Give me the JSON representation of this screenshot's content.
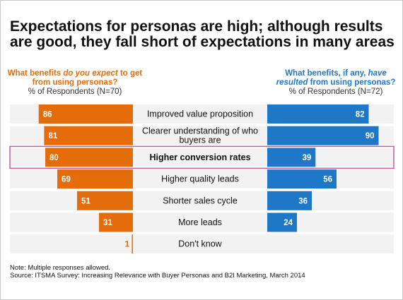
{
  "title": "Expectations for personas are high; although results are good, they fall short of expectations in many areas",
  "left_header": {
    "q_before": "What benefits ",
    "q_em": "do you expect",
    "q_after": " to get from using personas?",
    "sub": "% of Respondents (N=70)"
  },
  "right_header": {
    "q_before": "What benefits, if any, ",
    "q_em": "have resulted",
    "q_after": " from using personas?",
    "sub": "% of Respondents (N=72)"
  },
  "colors": {
    "expect": "#e46c0a",
    "result": "#1f77c8",
    "row_bg": "#f2f2f2",
    "highlight": "#c0609a"
  },
  "chart_data": {
    "type": "bar",
    "categories": [
      "Improved value proposition",
      "Clearer understanding of who buyers are",
      "Higher conversion rates",
      "Higher quality leads",
      "Shorter sales cycle",
      "More leads",
      "Don't know"
    ],
    "highlighted_category": "Higher conversion rates",
    "series": [
      {
        "name": "do you expect",
        "values": [
          86,
          81,
          80,
          69,
          51,
          31,
          1
        ]
      },
      {
        "name": "have resulted",
        "values": [
          82,
          90,
          39,
          56,
          36,
          24,
          null
        ]
      }
    ],
    "xlim": [
      0,
      100
    ]
  },
  "notes": {
    "line1": "Note: Multiple responses allowed.",
    "line2": "Source: ITSMA Survey: Increasing Relevance with Buyer Personas and B2I Marketing, March 2014"
  }
}
